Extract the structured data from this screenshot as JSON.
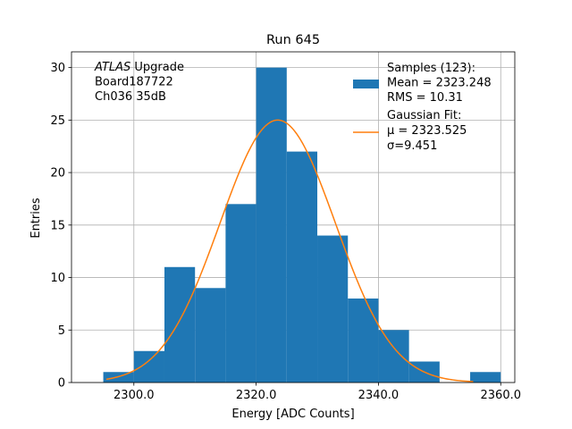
{
  "chart_data": {
    "type": "bar",
    "title": "Run 645",
    "xlabel": "Energy [ADC Counts]",
    "ylabel": "Entries",
    "xlim": [
      2289.8,
      2362.3
    ],
    "ylim": [
      0,
      31.5
    ],
    "grid": true,
    "x_ticks": [
      {
        "value": 2300,
        "label": "2300.0"
      },
      {
        "value": 2320,
        "label": "2320.0"
      },
      {
        "value": 2340,
        "label": "2340.0"
      },
      {
        "value": 2360,
        "label": "2360.0"
      }
    ],
    "y_ticks": [
      {
        "value": 0,
        "label": "0"
      },
      {
        "value": 5,
        "label": "5"
      },
      {
        "value": 10,
        "label": "10"
      },
      {
        "value": 15,
        "label": "15"
      },
      {
        "value": 20,
        "label": "20"
      },
      {
        "value": 25,
        "label": "25"
      },
      {
        "value": 30,
        "label": "30"
      }
    ],
    "histogram": {
      "color": "#1f77b4",
      "bin_edges": [
        2295,
        2300,
        2305,
        2310,
        2315,
        2320,
        2325,
        2330,
        2335,
        2340,
        2345,
        2350,
        2355,
        2360
      ],
      "counts": [
        1,
        3,
        11,
        9,
        17,
        30,
        22,
        14,
        8,
        5,
        2,
        0,
        1
      ]
    },
    "gaussian_fit": {
      "color": "#ff7f0e",
      "amplitude": 25,
      "mu": 2323.525,
      "sigma": 9.451,
      "x_range": [
        2295.5,
        2355.5
      ]
    },
    "annotation": {
      "lines": [
        {
          "italic": "ATLAS",
          "text": " Upgrade"
        },
        {
          "italic": "",
          "text": " Board187722"
        },
        {
          "italic": "",
          "text": " Ch036 35dB"
        }
      ]
    },
    "legend": {
      "placement": "top-right",
      "entries": [
        {
          "kind": "patch",
          "lines": [
            "Samples (123):",
            " Mean = 2323.248",
            " RMS = 10.31"
          ]
        },
        {
          "kind": "line",
          "lines": [
            "Gaussian Fit:",
            " μ = 2323.525",
            " σ=9.451"
          ]
        }
      ]
    }
  }
}
